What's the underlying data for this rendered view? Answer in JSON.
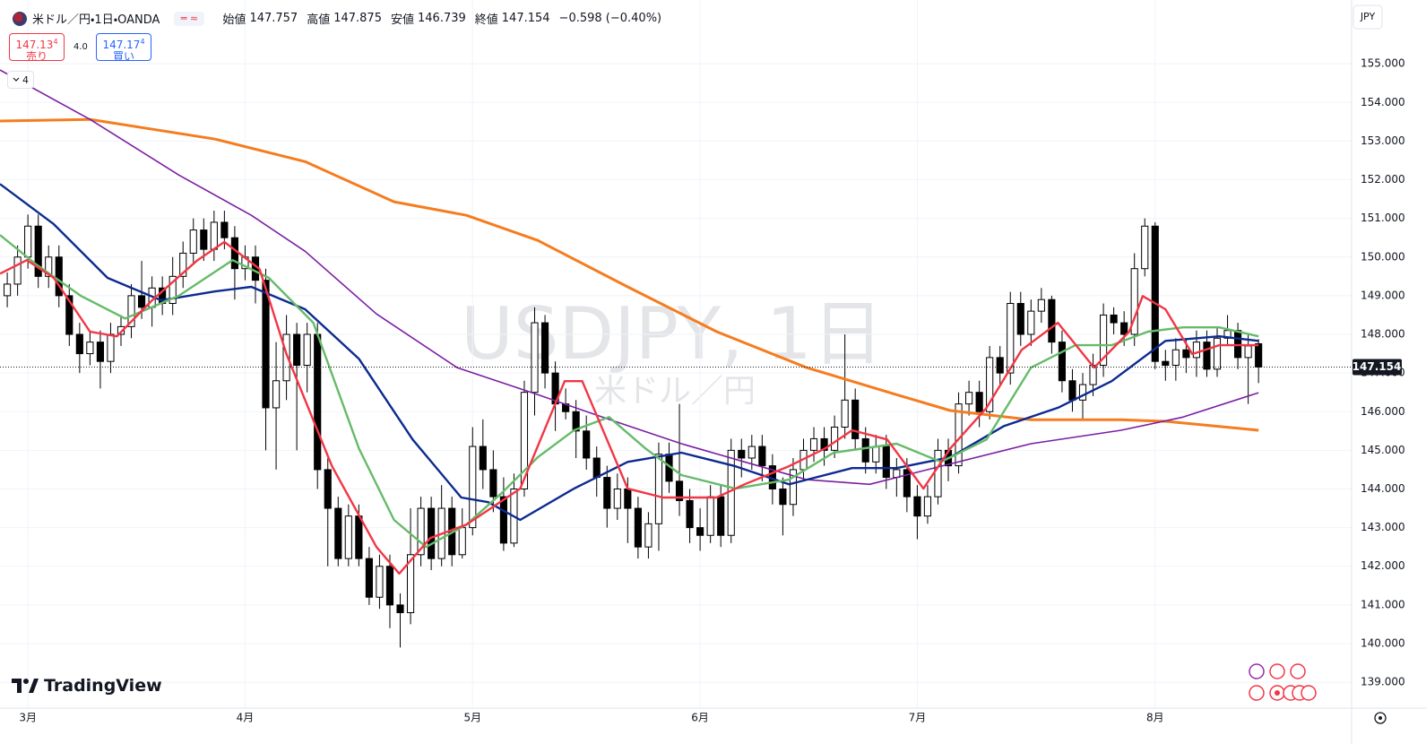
{
  "header": {
    "symbol": "米ドル／円・1日・OANDA",
    "open_label": "始値",
    "high_label": "高値",
    "low_label": "安値",
    "close_label": "終値",
    "change": "−0.598 (−0.40%)"
  },
  "trade": {
    "sell_price": "147.13",
    "sell_pip": "4",
    "sell_label": "売り",
    "spread": "4.0",
    "buy_price": "147.17",
    "buy_pip": "4",
    "buy_label": "買い"
  },
  "indicators_count": "4",
  "watermark": {
    "symbol": "USDJPY, 1日",
    "name": "米ドル／円"
  },
  "brand": "TradingView",
  "chart_data": {
    "type": "candlestick",
    "currency": "JPY",
    "open": [
      149.0,
      149.3,
      150.0,
      150.8,
      149.5,
      150.0,
      149.0,
      148.0,
      147.5,
      147.8,
      147.3,
      148.0,
      148.2,
      149.0,
      148.7,
      149.2,
      148.8,
      149.5,
      150.1,
      150.7,
      150.2,
      150.9,
      150.5,
      149.7,
      150.0,
      149.4,
      146.1,
      146.8,
      148.0,
      147.2,
      148.0,
      144.5,
      143.5,
      142.2,
      143.3,
      142.2,
      141.2,
      142.0,
      141.0,
      140.8,
      142.3,
      143.5,
      142.2,
      143.5,
      142.3,
      143.0,
      145.1,
      144.5,
      143.8,
      142.6,
      144.0,
      146.5,
      148.3,
      147.0,
      146.2,
      146.0,
      145.5,
      144.8,
      144.3,
      143.5,
      144.0,
      143.5,
      142.5,
      143.1,
      144.9,
      144.2,
      143.7,
      143.0,
      142.8,
      143.8,
      142.8,
      145.0,
      144.8,
      145.1,
      144.6,
      144.0,
      143.6,
      144.5,
      145.0,
      145.3,
      145.0,
      145.6,
      146.3,
      145.3,
      144.7,
      145.1,
      144.3,
      144.5,
      143.8,
      143.3,
      143.8,
      145.0,
      144.6,
      146.2,
      146.5,
      146.0,
      147.4,
      147.0,
      148.8,
      148.0,
      148.6,
      148.9,
      147.8,
      146.8,
      146.3,
      146.7,
      147.2,
      148.5,
      148.3,
      148.0,
      149.7,
      150.8,
      147.3,
      147.2,
      147.6,
      147.4,
      147.8,
      147.1,
      147.9,
      148.1,
      147.4,
      147.757
    ],
    "high": [
      149.6,
      150.3,
      151.1,
      151.1,
      150.3,
      150.3,
      149.3,
      148.3,
      148.1,
      148.1,
      148.3,
      148.5,
      149.3,
      149.9,
      149.5,
      149.5,
      150.0,
      150.4,
      151.0,
      151.0,
      151.2,
      151.2,
      150.8,
      150.3,
      150.3,
      149.7,
      147.8,
      148.5,
      148.3,
      148.3,
      148.3,
      144.8,
      143.8,
      143.6,
      143.6,
      142.5,
      142.3,
      142.3,
      141.3,
      143.5,
      143.8,
      143.8,
      144.1,
      143.8,
      143.5,
      145.6,
      145.8,
      145.0,
      144.3,
      144.4,
      146.8,
      148.7,
      148.5,
      147.3,
      146.6,
      146.3,
      145.9,
      145.1,
      144.6,
      144.4,
      144.3,
      143.8,
      143.4,
      145.2,
      145.2,
      146.2,
      144.0,
      143.5,
      144.1,
      144.1,
      145.3,
      145.3,
      145.4,
      145.4,
      144.9,
      144.3,
      144.8,
      145.3,
      145.6,
      145.6,
      145.9,
      148.0,
      146.6,
      145.6,
      145.4,
      145.4,
      144.8,
      144.8,
      144.1,
      144.1,
      145.3,
      145.3,
      146.5,
      146.8,
      146.8,
      147.7,
      147.7,
      149.1,
      149.1,
      148.9,
      149.2,
      149.0,
      148.1,
      147.1,
      147.0,
      147.5,
      148.8,
      148.7,
      148.6,
      150.1,
      151.0,
      150.9,
      147.6,
      147.9,
      147.9,
      148.1,
      148.1,
      148.2,
      148.5,
      148.3,
      148.0,
      147.875
    ],
    "low": [
      148.7,
      149.0,
      149.7,
      149.2,
      149.2,
      148.7,
      147.7,
      147.0,
      147.2,
      146.6,
      147.0,
      147.7,
      147.9,
      148.4,
      148.2,
      148.5,
      148.5,
      149.2,
      149.8,
      149.9,
      149.9,
      150.2,
      148.9,
      149.4,
      148.8,
      145.0,
      144.5,
      146.3,
      145.0,
      146.5,
      144.0,
      142.0,
      142.0,
      142.0,
      142.0,
      141.0,
      140.9,
      140.4,
      139.9,
      140.5,
      142.0,
      141.9,
      142.0,
      142.0,
      142.2,
      142.8,
      144.0,
      143.4,
      142.4,
      142.5,
      143.8,
      145.9,
      146.6,
      145.5,
      145.8,
      144.8,
      144.5,
      143.8,
      143.0,
      143.2,
      142.6,
      142.2,
      142.2,
      142.4,
      143.9,
      143.3,
      142.6,
      142.4,
      142.6,
      142.5,
      142.6,
      144.3,
      144.5,
      144.2,
      143.6,
      142.8,
      143.3,
      144.2,
      144.7,
      144.6,
      144.8,
      145.3,
      145.0,
      144.4,
      144.4,
      144.0,
      143.8,
      143.4,
      142.7,
      143.1,
      143.6,
      144.2,
      144.4,
      145.9,
      145.6,
      145.8,
      146.7,
      146.7,
      147.7,
      147.7,
      148.3,
      147.5,
      146.5,
      146.0,
      145.8,
      146.4,
      146.9,
      148.0,
      147.7,
      147.7,
      149.5,
      147.1,
      146.8,
      146.8,
      147.0,
      146.9,
      146.9,
      146.9,
      147.7,
      147.1,
      146.2,
      146.739
    ],
    "close": [
      149.3,
      150.0,
      150.8,
      149.5,
      150.0,
      149.0,
      148.0,
      147.5,
      147.8,
      147.3,
      148.0,
      148.2,
      149.0,
      148.7,
      149.2,
      148.8,
      149.5,
      150.1,
      150.7,
      150.2,
      150.9,
      150.5,
      149.7,
      150.0,
      149.4,
      146.1,
      146.8,
      148.0,
      147.2,
      148.0,
      144.5,
      143.5,
      142.2,
      143.3,
      142.2,
      141.2,
      142.0,
      141.0,
      140.8,
      142.3,
      143.5,
      142.2,
      143.5,
      142.3,
      143.0,
      145.1,
      144.5,
      143.8,
      142.6,
      144.0,
      146.5,
      148.3,
      147.0,
      146.2,
      146.0,
      145.5,
      144.8,
      144.3,
      143.5,
      144.0,
      143.5,
      142.5,
      143.1,
      144.9,
      144.2,
      143.7,
      143.0,
      142.8,
      143.8,
      142.8,
      145.0,
      144.8,
      145.1,
      144.6,
      144.0,
      143.6,
      144.5,
      145.0,
      145.3,
      145.0,
      145.6,
      146.3,
      145.3,
      144.7,
      145.1,
      144.3,
      144.5,
      143.8,
      143.3,
      143.8,
      145.0,
      144.6,
      146.2,
      146.5,
      146.0,
      147.4,
      147.0,
      148.8,
      148.0,
      148.6,
      148.9,
      147.8,
      146.8,
      146.3,
      146.7,
      147.2,
      148.5,
      148.3,
      148.0,
      149.7,
      150.8,
      147.3,
      147.2,
      147.6,
      147.4,
      147.8,
      147.1,
      147.9,
      148.1,
      147.4,
      147.7,
      147.154
    ],
    "up_color": "#ffffff",
    "down_color": "#000000",
    "moving_averages": [
      {
        "color": "#f57c1f",
        "x": [
          -0.7,
          8.0,
          20.1,
          28.8,
          37.4,
          44.4,
          51.3,
          60.0,
          68.6,
          77.3,
          86.0,
          91.2,
          99.0,
          107.7,
          112.0,
          121.0
        ],
        "values": [
          153.52,
          153.56,
          153.05,
          152.47,
          151.43,
          151.08,
          150.43,
          149.23,
          148.07,
          147.14,
          146.44,
          146.03,
          145.79,
          145.79,
          145.75,
          145.52
        ]
      },
      {
        "color": "#7b1fa2",
        "x": [
          -0.7,
          8.0,
          16.6,
          23.6,
          28.8,
          35.7,
          43.5,
          51.3,
          58.3,
          65.2,
          71.3,
          77.3,
          83.4,
          90.3,
          99.0,
          107.7,
          113.7,
          121.0
        ],
        "values": [
          154.84,
          153.56,
          152.12,
          151.08,
          150.15,
          148.53,
          147.14,
          146.44,
          145.79,
          145.17,
          144.7,
          144.24,
          144.12,
          144.59,
          145.17,
          145.52,
          145.86,
          146.49
        ]
      },
      {
        "color": "#0d2a8f",
        "x": [
          -0.7,
          4.5,
          9.7,
          14.9,
          20.1,
          23.6,
          28.8,
          34.0,
          39.2,
          43.9,
          46.5,
          49.6,
          54.8,
          60.0,
          65.2,
          70.4,
          75.6,
          81.7,
          86.0,
          91.2,
          96.4,
          101.6,
          106.8,
          112.0,
          117.2,
          121.0
        ],
        "values": [
          151.89,
          150.85,
          149.46,
          148.88,
          149.11,
          149.23,
          148.65,
          147.37,
          145.28,
          143.78,
          143.66,
          143.2,
          144.01,
          144.7,
          144.94,
          144.59,
          144.12,
          144.54,
          144.54,
          144.82,
          145.63,
          146.1,
          146.79,
          147.83,
          147.95,
          147.83
        ]
      },
      {
        "color": "#66bb6a",
        "x": [
          -0.7,
          2.8,
          7.1,
          11.4,
          16.6,
          21.8,
          25.3,
          29.6,
          34.0,
          37.4,
          40.5,
          44.4,
          47.8,
          51.3,
          54.8,
          58.2,
          61.7,
          65.2,
          70.4,
          75.6,
          79.9,
          86.0,
          90.3,
          94.7,
          99.0,
          103.3,
          106.8,
          110.3,
          113.7,
          117.2,
          121.0
        ],
        "values": [
          150.57,
          149.81,
          149.0,
          148.41,
          149.0,
          149.92,
          149.46,
          148.3,
          145.05,
          143.2,
          142.5,
          143.08,
          143.89,
          144.82,
          145.52,
          145.86,
          145.05,
          144.36,
          144.01,
          144.24,
          144.94,
          145.17,
          144.7,
          145.28,
          147.14,
          147.72,
          147.72,
          148.07,
          148.18,
          148.18,
          147.95
        ]
      },
      {
        "color": "#f23645",
        "x": [
          -0.7,
          1.9,
          4.5,
          8.0,
          10.6,
          14.0,
          18.4,
          21.0,
          24.4,
          27.0,
          31.4,
          35.7,
          37.9,
          40.9,
          44.4,
          49.6,
          53.9,
          55.6,
          60.0,
          63.4,
          68.6,
          71.3,
          75.6,
          79.1,
          81.7,
          85.1,
          88.6,
          91.2,
          94.7,
          98.1,
          101.6,
          105.1,
          108.5,
          109.8,
          112.0,
          114.6,
          117.2,
          121.0
        ],
        "values": [
          149.57,
          149.92,
          149.46,
          148.07,
          147.95,
          148.88,
          149.92,
          150.39,
          149.69,
          147.49,
          144.59,
          142.5,
          141.81,
          142.73,
          143.08,
          144.01,
          146.79,
          146.79,
          144.01,
          143.78,
          143.78,
          144.12,
          144.59,
          145.05,
          145.52,
          145.28,
          144.01,
          145.05,
          146.1,
          147.6,
          148.3,
          147.14,
          148.07,
          148.99,
          148.65,
          147.49,
          147.72,
          147.72
        ]
      }
    ],
    "xlim": [
      -0.7,
      130.0
    ],
    "xticks": [
      {
        "value": 2,
        "label": "3月"
      },
      {
        "value": 23,
        "label": "4月"
      },
      {
        "value": 45,
        "label": "5月"
      },
      {
        "value": 67,
        "label": "6月"
      },
      {
        "value": 88,
        "label": "7月"
      },
      {
        "value": 111,
        "label": "8月"
      }
    ],
    "ylim": [
      138.33,
      156.65
    ],
    "yticks": [
      {
        "value": 139,
        "label": "139.000"
      },
      {
        "value": 140,
        "label": "140.000"
      },
      {
        "value": 141,
        "label": "141.000"
      },
      {
        "value": 142,
        "label": "142.000"
      },
      {
        "value": 143,
        "label": "143.000"
      },
      {
        "value": 144,
        "label": "144.000"
      },
      {
        "value": 145,
        "label": "145.000"
      },
      {
        "value": 146,
        "label": "146.000"
      },
      {
        "value": 147,
        "label": "147.000"
      },
      {
        "value": 148,
        "label": "148.000"
      },
      {
        "value": 149,
        "label": "149.000"
      },
      {
        "value": 150,
        "label": "150.000"
      },
      {
        "value": 151,
        "label": "151.000"
      },
      {
        "value": 152,
        "label": "152.000"
      },
      {
        "value": 153,
        "label": "153.000"
      },
      {
        "value": 154,
        "label": "154.000"
      },
      {
        "value": 155,
        "label": "155.000"
      }
    ],
    "grid": true
  }
}
